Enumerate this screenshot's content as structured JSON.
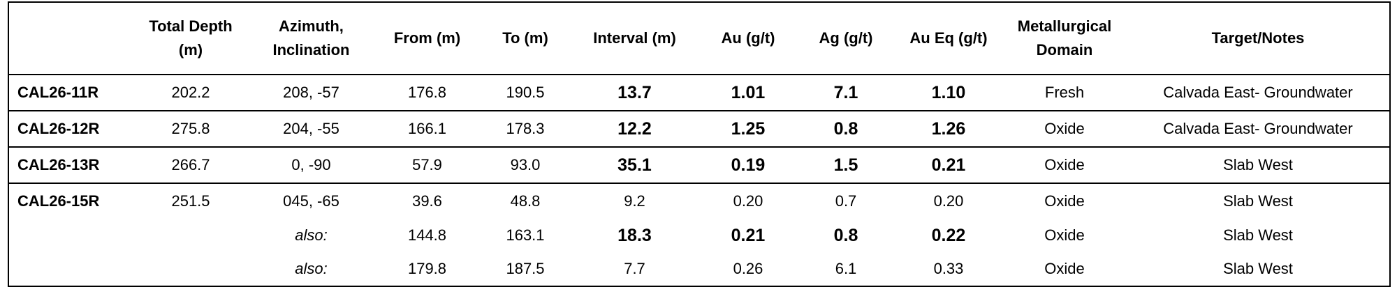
{
  "table": {
    "header": [
      [
        ""
      ],
      [
        "Total Depth",
        "(m)"
      ],
      [
        "Azimuth,",
        "Inclination"
      ],
      [
        "From (m)"
      ],
      [
        "To (m)"
      ],
      [
        "Interval (m)"
      ],
      [
        "Au (g/t)"
      ],
      [
        "Ag (g/t)"
      ],
      [
        "Au Eq (g/t)"
      ],
      [
        "Metallurgical",
        "Domain"
      ],
      [
        "Target/Notes"
      ]
    ],
    "rows": [
      {
        "hole": "CAL26-11R",
        "depth": "202.2",
        "azimuth": "208, -57",
        "from": "176.8",
        "to": "190.5",
        "interval": "13.7",
        "au": "1.01",
        "ag": "7.1",
        "aueq": "1.10",
        "domain": "Fresh",
        "target": "Calvada East- Groundwater"
      },
      {
        "hole": "CAL26-12R",
        "depth": "275.8",
        "azimuth": "204, -55",
        "from": "166.1",
        "to": "178.3",
        "interval": "12.2",
        "au": "1.25",
        "ag": "0.8",
        "aueq": "1.26",
        "domain": "Oxide",
        "target": "Calvada East- Groundwater"
      },
      {
        "hole": "CAL26-13R",
        "depth": "266.7",
        "azimuth": "0, -90",
        "from": "57.9",
        "to": "93.0",
        "interval": "35.1",
        "au": "0.19",
        "ag": "1.5",
        "aueq": "0.21",
        "domain": "Oxide",
        "target": "Slab West"
      },
      {
        "hole": "CAL26-15R",
        "depth": "251.5",
        "azimuth": "045, -65",
        "from": "39.6",
        "to": "48.8",
        "interval": "9.2",
        "au": "0.20",
        "ag": "0.7",
        "aueq": "0.20",
        "domain": "Oxide",
        "target": "Slab West"
      },
      {
        "azimuth": "also:",
        "from": "144.8",
        "to": "163.1",
        "interval": "18.3",
        "au": "0.21",
        "ag": "0.8",
        "aueq": "0.22",
        "domain": "Oxide",
        "target": "Slab West"
      },
      {
        "azimuth": "also:",
        "from": "179.8",
        "to": "187.5",
        "interval": "7.7",
        "au": "0.26",
        "ag": "6.1",
        "aueq": "0.33",
        "domain": "Oxide",
        "target": "Slab West"
      }
    ]
  }
}
